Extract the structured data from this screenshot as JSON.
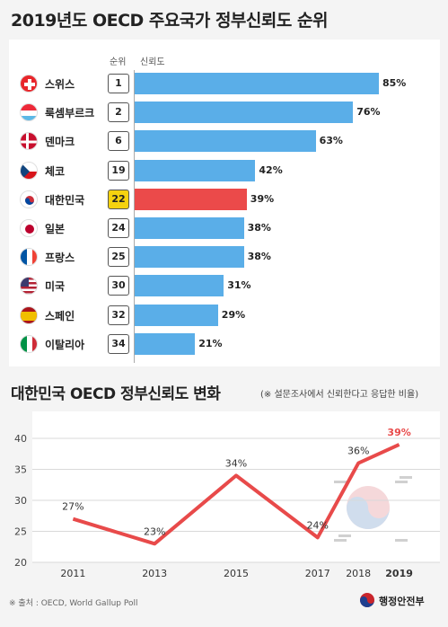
{
  "title1": "2019년도 OECD 주요국가 정부신뢰도 순위",
  "col_rank": "순위",
  "col_trust": "신뢰도",
  "title2": "대한민국 OECD 정부신뢰도 변화",
  "note2": "(※ 설문조사에서 신뢰한다고 응답한 비율)",
  "source": "※ 출처 : OECD, World Gallup Poll",
  "logo_text": "행정안전부",
  "chart_data": [
    {
      "type": "bar",
      "title": "2019년도 OECD 주요국가 정부신뢰도 순위",
      "categories": [
        "스위스",
        "룩셈부르크",
        "덴마크",
        "체코",
        "대한민국",
        "일본",
        "프랑스",
        "미국",
        "스페인",
        "이탈리아"
      ],
      "ranks": [
        "1",
        "2",
        "6",
        "19",
        "22",
        "24",
        "25",
        "30",
        "32",
        "34"
      ],
      "values": [
        85,
        76,
        63,
        42,
        39,
        38,
        38,
        31,
        29,
        21
      ],
      "labels": [
        "85%",
        "76%",
        "63%",
        "42%",
        "39%",
        "38%",
        "38%",
        "31%",
        "29%",
        "21%"
      ],
      "highlight": "대한민국",
      "colors": {
        "bar": "#5aaee8",
        "highlight_bar": "#eb4a4a",
        "highlight_rank": "#f5d20f"
      },
      "flags": [
        "swiss-flag",
        "luxembourg-flag",
        "denmark-flag",
        "czech-flag",
        "korea-flag",
        "japan-flag",
        "france-flag",
        "usa-flag",
        "spain-flag",
        "italy-flag"
      ]
    },
    {
      "type": "line",
      "title": "대한민국 OECD 정부신뢰도 변화",
      "x": [
        "2011",
        "2013",
        "2015",
        "2017",
        "2018",
        "2019"
      ],
      "x_numeric": [
        2011,
        2013,
        2015,
        2017,
        2018,
        2019
      ],
      "values": [
        27,
        23,
        34,
        24,
        36,
        39
      ],
      "labels": [
        "27%",
        "23%",
        "34%",
        "24%",
        "36%",
        "39%"
      ],
      "yticks": [
        "20",
        "25",
        "30",
        "35",
        "40"
      ],
      "ylim": [
        20,
        40
      ],
      "xlim": [
        2010,
        2020
      ],
      "grid": true,
      "colors": {
        "line": "#e84a4a",
        "last_label": "#e84a4a"
      }
    }
  ]
}
